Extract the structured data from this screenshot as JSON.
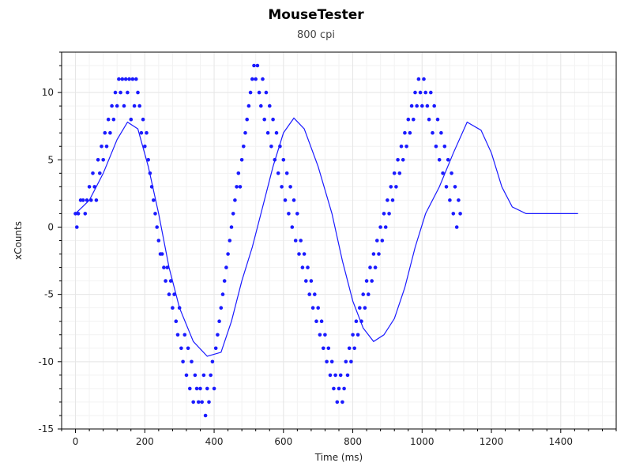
{
  "chart_data": {
    "type": "scatter",
    "title": "MouseTester",
    "subtitle": "800 cpi",
    "xlabel": "Time (ms)",
    "ylabel": "xCounts",
    "xlim": [
      -40,
      1560
    ],
    "ylim": [
      -15.0,
      13.0
    ],
    "x_ticks": [
      0,
      200,
      400,
      600,
      800,
      1000,
      1200,
      1400
    ],
    "y_ticks": [
      10,
      5,
      0,
      -5,
      -10,
      -15
    ],
    "grid": true,
    "colors": {
      "series": "#1a1aff",
      "grid": "#e6e6e6",
      "axis": "#000000"
    },
    "series": [
      {
        "style": "points",
        "points": [
          [
            0,
            1
          ],
          [
            4,
            0
          ],
          [
            8,
            1
          ],
          [
            15,
            2
          ],
          [
            22,
            2
          ],
          [
            28,
            1
          ],
          [
            33,
            2
          ],
          [
            40,
            3
          ],
          [
            45,
            2
          ],
          [
            50,
            4
          ],
          [
            55,
            3
          ],
          [
            60,
            2
          ],
          [
            65,
            5
          ],
          [
            70,
            4
          ],
          [
            75,
            6
          ],
          [
            80,
            5
          ],
          [
            85,
            7
          ],
          [
            90,
            6
          ],
          [
            95,
            8
          ],
          [
            100,
            7
          ],
          [
            105,
            9
          ],
          [
            110,
            8
          ],
          [
            115,
            10
          ],
          [
            120,
            9
          ],
          [
            125,
            11
          ],
          [
            130,
            10
          ],
          [
            135,
            11
          ],
          [
            140,
            9
          ],
          [
            145,
            11
          ],
          [
            150,
            10
          ],
          [
            155,
            11
          ],
          [
            160,
            8
          ],
          [
            165,
            11
          ],
          [
            170,
            9
          ],
          [
            175,
            11
          ],
          [
            180,
            10
          ],
          [
            185,
            9
          ],
          [
            190,
            7
          ],
          [
            195,
            8
          ],
          [
            200,
            6
          ],
          [
            205,
            7
          ],
          [
            210,
            5
          ],
          [
            215,
            4
          ],
          [
            220,
            3
          ],
          [
            225,
            2
          ],
          [
            230,
            1
          ],
          [
            235,
            0
          ],
          [
            240,
            -1
          ],
          [
            245,
            -2
          ],
          [
            250,
            -2
          ],
          [
            255,
            -3
          ],
          [
            260,
            -4
          ],
          [
            265,
            -3
          ],
          [
            270,
            -5
          ],
          [
            275,
            -4
          ],
          [
            280,
            -6
          ],
          [
            285,
            -5
          ],
          [
            290,
            -7
          ],
          [
            295,
            -8
          ],
          [
            300,
            -6
          ],
          [
            305,
            -9
          ],
          [
            310,
            -10
          ],
          [
            315,
            -8
          ],
          [
            320,
            -11
          ],
          [
            325,
            -9
          ],
          [
            330,
            -12
          ],
          [
            335,
            -10
          ],
          [
            340,
            -13
          ],
          [
            345,
            -11
          ],
          [
            350,
            -12
          ],
          [
            355,
            -13
          ],
          [
            360,
            -12
          ],
          [
            365,
            -13
          ],
          [
            370,
            -11
          ],
          [
            375,
            -14
          ],
          [
            380,
            -12
          ],
          [
            385,
            -13
          ],
          [
            390,
            -11
          ],
          [
            395,
            -10
          ],
          [
            400,
            -12
          ],
          [
            405,
            -9
          ],
          [
            410,
            -8
          ],
          [
            415,
            -7
          ],
          [
            420,
            -6
          ],
          [
            425,
            -5
          ],
          [
            430,
            -4
          ],
          [
            435,
            -3
          ],
          [
            440,
            -2
          ],
          [
            445,
            -1
          ],
          [
            450,
            0
          ],
          [
            455,
            1
          ],
          [
            460,
            2
          ],
          [
            465,
            3
          ],
          [
            470,
            4
          ],
          [
            475,
            3
          ],
          [
            480,
            5
          ],
          [
            485,
            6
          ],
          [
            490,
            7
          ],
          [
            495,
            8
          ],
          [
            500,
            9
          ],
          [
            505,
            10
          ],
          [
            510,
            11
          ],
          [
            515,
            12
          ],
          [
            520,
            11
          ],
          [
            525,
            12
          ],
          [
            530,
            10
          ],
          [
            535,
            9
          ],
          [
            540,
            11
          ],
          [
            545,
            8
          ],
          [
            550,
            10
          ],
          [
            555,
            7
          ],
          [
            560,
            9
          ],
          [
            565,
            6
          ],
          [
            570,
            8
          ],
          [
            575,
            5
          ],
          [
            580,
            7
          ],
          [
            585,
            4
          ],
          [
            590,
            6
          ],
          [
            595,
            3
          ],
          [
            600,
            5
          ],
          [
            605,
            2
          ],
          [
            610,
            4
          ],
          [
            615,
            1
          ],
          [
            620,
            3
          ],
          [
            625,
            0
          ],
          [
            630,
            2
          ],
          [
            635,
            -1
          ],
          [
            640,
            1
          ],
          [
            645,
            -2
          ],
          [
            650,
            -1
          ],
          [
            655,
            -3
          ],
          [
            660,
            -2
          ],
          [
            665,
            -4
          ],
          [
            670,
            -3
          ],
          [
            675,
            -5
          ],
          [
            680,
            -4
          ],
          [
            685,
            -6
          ],
          [
            690,
            -5
          ],
          [
            695,
            -7
          ],
          [
            700,
            -6
          ],
          [
            705,
            -8
          ],
          [
            710,
            -7
          ],
          [
            715,
            -9
          ],
          [
            720,
            -8
          ],
          [
            725,
            -10
          ],
          [
            730,
            -9
          ],
          [
            735,
            -11
          ],
          [
            740,
            -10
          ],
          [
            745,
            -12
          ],
          [
            750,
            -11
          ],
          [
            755,
            -13
          ],
          [
            760,
            -12
          ],
          [
            765,
            -11
          ],
          [
            770,
            -13
          ],
          [
            775,
            -12
          ],
          [
            780,
            -10
          ],
          [
            785,
            -11
          ],
          [
            790,
            -9
          ],
          [
            795,
            -10
          ],
          [
            800,
            -8
          ],
          [
            805,
            -9
          ],
          [
            810,
            -7
          ],
          [
            815,
            -8
          ],
          [
            820,
            -6
          ],
          [
            825,
            -7
          ],
          [
            830,
            -5
          ],
          [
            835,
            -6
          ],
          [
            840,
            -4
          ],
          [
            845,
            -5
          ],
          [
            850,
            -3
          ],
          [
            855,
            -4
          ],
          [
            860,
            -2
          ],
          [
            865,
            -3
          ],
          [
            870,
            -1
          ],
          [
            875,
            -2
          ],
          [
            880,
            0
          ],
          [
            885,
            -1
          ],
          [
            890,
            1
          ],
          [
            895,
            0
          ],
          [
            900,
            2
          ],
          [
            905,
            1
          ],
          [
            910,
            3
          ],
          [
            915,
            2
          ],
          [
            920,
            4
          ],
          [
            925,
            3
          ],
          [
            930,
            5
          ],
          [
            935,
            4
          ],
          [
            940,
            6
          ],
          [
            945,
            5
          ],
          [
            950,
            7
          ],
          [
            955,
            6
          ],
          [
            960,
            8
          ],
          [
            965,
            7
          ],
          [
            970,
            9
          ],
          [
            975,
            8
          ],
          [
            980,
            10
          ],
          [
            985,
            9
          ],
          [
            990,
            11
          ],
          [
            995,
            10
          ],
          [
            1000,
            9
          ],
          [
            1005,
            11
          ],
          [
            1010,
            10
          ],
          [
            1015,
            9
          ],
          [
            1020,
            8
          ],
          [
            1025,
            10
          ],
          [
            1030,
            7
          ],
          [
            1035,
            9
          ],
          [
            1040,
            6
          ],
          [
            1045,
            8
          ],
          [
            1050,
            5
          ],
          [
            1055,
            7
          ],
          [
            1060,
            4
          ],
          [
            1065,
            6
          ],
          [
            1070,
            3
          ],
          [
            1075,
            5
          ],
          [
            1080,
            2
          ],
          [
            1085,
            4
          ],
          [
            1090,
            1
          ],
          [
            1095,
            3
          ],
          [
            1100,
            0
          ],
          [
            1105,
            2
          ],
          [
            1110,
            1
          ]
        ]
      },
      {
        "style": "line",
        "x": [
          0,
          40,
          80,
          120,
          150,
          180,
          210,
          240,
          270,
          300,
          340,
          380,
          420,
          450,
          480,
          510,
          540,
          570,
          600,
          630,
          660,
          700,
          740,
          770,
          800,
          830,
          860,
          890,
          920,
          950,
          980,
          1010,
          1050,
          1090,
          1130,
          1170,
          1200,
          1230,
          1260,
          1300,
          1340,
          1380,
          1420,
          1450
        ],
        "y": [
          1,
          2,
          4,
          6.5,
          7.8,
          7.3,
          4.5,
          1,
          -3,
          -6,
          -8.5,
          -9.6,
          -9.3,
          -7,
          -4,
          -1.5,
          1.5,
          4.5,
          7,
          8.1,
          7.3,
          4.5,
          1,
          -2.5,
          -5.5,
          -7.5,
          -8.5,
          -8,
          -6.8,
          -4.5,
          -1.5,
          1,
          3,
          5.5,
          7.8,
          7.2,
          5.5,
          3,
          1.5,
          1,
          1,
          1,
          1,
          1
        ]
      }
    ]
  }
}
